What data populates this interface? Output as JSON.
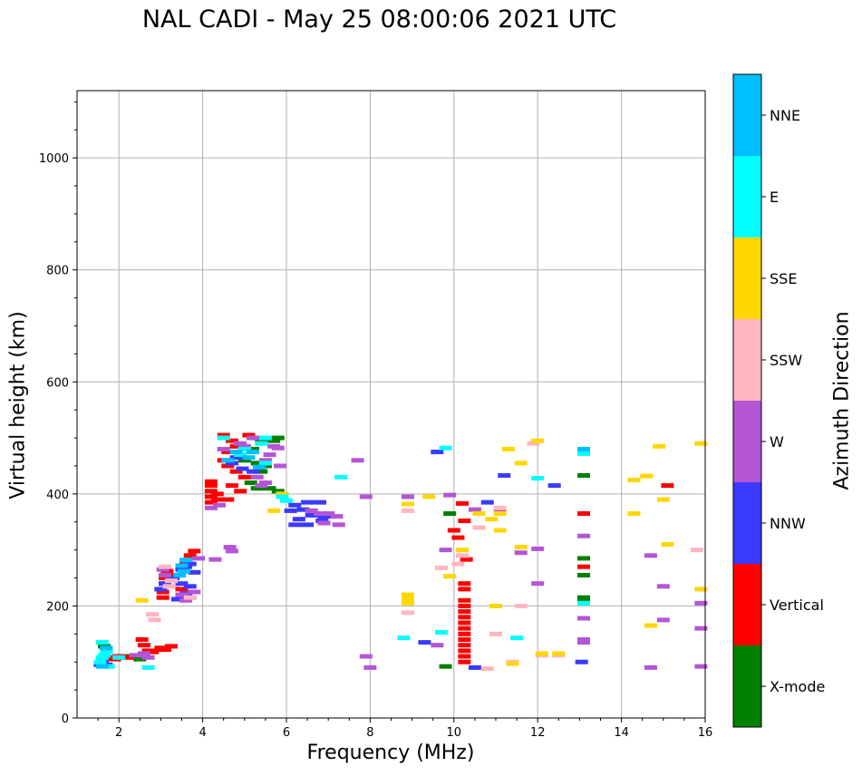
{
  "chart_data": {
    "type": "scatter",
    "title": "NAL CADI - May 25 08:00:06 2021 UTC",
    "xlabel": "Frequency (MHz)",
    "ylabel": "Virtual height (km)",
    "xlim": [
      1.0,
      16.0
    ],
    "ylim": [
      0,
      1120
    ],
    "xticks": [
      2,
      4,
      6,
      8,
      10,
      12,
      14,
      16
    ],
    "yticks": [
      0,
      200,
      400,
      600,
      800,
      1000
    ],
    "xtick_labels": [
      "2",
      "4",
      "6",
      "8",
      "10",
      "12",
      "14",
      "16"
    ],
    "ytick_labels": [
      "0",
      "200",
      "400",
      "600",
      "800",
      "1000"
    ],
    "grid": true,
    "colorbar": {
      "label": "Azimuth Direction",
      "categories": [
        "X-mode",
        "Vertical",
        "NNW",
        "W",
        "SSW",
        "SSE",
        "E",
        "NNE"
      ],
      "colors": [
        "#008000",
        "#ff0000",
        "#3a3aff",
        "#b455d6",
        "#ffb6c1",
        "#ffd700",
        "#00ffff",
        "#00bfff"
      ]
    },
    "series": [
      {
        "name": "X-mode",
        "points": [
          [
            1.65,
            128
          ],
          [
            1.7,
            122
          ],
          [
            2.1,
            110
          ],
          [
            2.5,
            105
          ],
          [
            4.9,
            470
          ],
          [
            5.0,
            460
          ],
          [
            5.2,
            480
          ],
          [
            5.3,
            500
          ],
          [
            5.4,
            495
          ],
          [
            5.5,
            500
          ],
          [
            5.6,
            498
          ],
          [
            5.7,
            495
          ],
          [
            5.8,
            500
          ],
          [
            5.3,
            455
          ],
          [
            5.5,
            450
          ],
          [
            5.4,
            440
          ],
          [
            5.6,
            410
          ],
          [
            5.8,
            405
          ],
          [
            9.9,
            365
          ],
          [
            13.1,
            433
          ],
          [
            13.1,
            285
          ],
          [
            13.1,
            255
          ],
          [
            13.1,
            215
          ],
          [
            13.1,
            210
          ],
          [
            9.8,
            92
          ],
          [
            5.15,
            420
          ],
          [
            5.3,
            410
          ]
        ]
      },
      {
        "name": "Vertical",
        "points": [
          [
            1.8,
            108
          ],
          [
            1.9,
            105
          ],
          [
            2.0,
            110
          ],
          [
            2.2,
            108
          ],
          [
            2.7,
            120
          ],
          [
            2.8,
            118
          ],
          [
            3.0,
            125
          ],
          [
            3.1,
            122
          ],
          [
            3.25,
            128
          ],
          [
            3.05,
            215
          ],
          [
            3.05,
            225
          ],
          [
            3.1,
            240
          ],
          [
            3.1,
            250
          ],
          [
            3.15,
            262
          ],
          [
            3.3,
            255
          ],
          [
            3.5,
            230
          ],
          [
            3.7,
            290
          ],
          [
            3.8,
            298
          ],
          [
            3.6,
            280
          ],
          [
            4.2,
            385
          ],
          [
            4.2,
            395
          ],
          [
            4.2,
            405
          ],
          [
            4.2,
            415
          ],
          [
            4.2,
            422
          ],
          [
            4.35,
            400
          ],
          [
            4.35,
            390
          ],
          [
            4.6,
            390
          ],
          [
            4.5,
            505
          ],
          [
            4.7,
            495
          ],
          [
            4.8,
            485
          ],
          [
            4.6,
            475
          ],
          [
            4.9,
            470
          ],
          [
            4.5,
            460
          ],
          [
            4.6,
            450
          ],
          [
            4.8,
            440
          ],
          [
            5.0,
            430
          ],
          [
            4.7,
            415
          ],
          [
            4.9,
            405
          ],
          [
            5.1,
            505
          ],
          [
            5.3,
            500
          ],
          [
            10.0,
            335
          ],
          [
            10.1,
            322
          ],
          [
            10.2,
            383
          ],
          [
            10.25,
            352
          ],
          [
            10.3,
            283
          ],
          [
            10.25,
            240
          ],
          [
            10.25,
            230
          ],
          [
            10.25,
            210
          ],
          [
            10.25,
            200
          ],
          [
            10.25,
            190
          ],
          [
            10.25,
            180
          ],
          [
            10.25,
            170
          ],
          [
            10.25,
            160
          ],
          [
            10.25,
            150
          ],
          [
            10.25,
            140
          ],
          [
            10.25,
            130
          ],
          [
            10.25,
            120
          ],
          [
            10.25,
            110
          ],
          [
            10.25,
            100
          ],
          [
            13.1,
            365
          ],
          [
            13.1,
            270
          ],
          [
            15.1,
            415
          ],
          [
            2.55,
            140
          ],
          [
            2.6,
            130
          ]
        ]
      },
      {
        "name": "NNW",
        "points": [
          [
            1.55,
            95
          ],
          [
            1.6,
            100
          ],
          [
            1.7,
            95
          ],
          [
            3.0,
            230
          ],
          [
            3.1,
            240
          ],
          [
            3.3,
            250
          ],
          [
            3.5,
            265
          ],
          [
            3.6,
            270
          ],
          [
            3.7,
            275
          ],
          [
            3.8,
            260
          ],
          [
            3.5,
            240
          ],
          [
            3.7,
            235
          ],
          [
            3.6,
            222
          ],
          [
            3.4,
            212
          ],
          [
            4.7,
            455
          ],
          [
            4.8,
            465
          ],
          [
            4.95,
            445
          ],
          [
            5.2,
            440
          ],
          [
            6.1,
            370
          ],
          [
            6.2,
            380
          ],
          [
            6.5,
            385
          ],
          [
            6.8,
            385
          ],
          [
            6.4,
            372
          ],
          [
            6.6,
            362
          ],
          [
            6.9,
            360
          ],
          [
            6.3,
            355
          ],
          [
            6.2,
            345
          ],
          [
            6.5,
            345
          ],
          [
            6.85,
            352
          ],
          [
            9.6,
            475
          ],
          [
            10.5,
            90
          ],
          [
            10.8,
            385
          ],
          [
            11.2,
            433
          ],
          [
            12.4,
            415
          ],
          [
            13.05,
            100
          ],
          [
            9.3,
            135
          ]
        ]
      },
      {
        "name": "W",
        "points": [
          [
            2.4,
            112
          ],
          [
            2.6,
            115
          ],
          [
            2.7,
            108
          ],
          [
            3.05,
            265
          ],
          [
            3.1,
            255
          ],
          [
            3.25,
            245
          ],
          [
            3.5,
            220
          ],
          [
            3.7,
            215
          ],
          [
            3.8,
            225
          ],
          [
            3.6,
            210
          ],
          [
            3.9,
            285
          ],
          [
            4.3,
            283
          ],
          [
            4.2,
            375
          ],
          [
            4.4,
            380
          ],
          [
            4.65,
            305
          ],
          [
            4.7,
            298
          ],
          [
            4.5,
            480
          ],
          [
            4.9,
            490
          ],
          [
            5.2,
            500
          ],
          [
            5.7,
            485
          ],
          [
            5.8,
            482
          ],
          [
            5.6,
            470
          ],
          [
            5.5,
            460
          ],
          [
            5.85,
            450
          ],
          [
            5.0,
            485
          ],
          [
            5.4,
            415
          ],
          [
            5.5,
            420
          ],
          [
            5.3,
            430
          ],
          [
            6.6,
            370
          ],
          [
            6.8,
            365
          ],
          [
            7.0,
            365
          ],
          [
            7.2,
            360
          ],
          [
            7.25,
            345
          ],
          [
            6.9,
            348
          ],
          [
            7.7,
            460
          ],
          [
            7.9,
            395
          ],
          [
            7.9,
            110
          ],
          [
            8.0,
            90
          ],
          [
            8.9,
            395
          ],
          [
            9.9,
            398
          ],
          [
            10.5,
            372
          ],
          [
            11.1,
            368
          ],
          [
            11.6,
            295
          ],
          [
            12.0,
            302
          ],
          [
            12.0,
            240
          ],
          [
            13.1,
            325
          ],
          [
            13.1,
            178
          ],
          [
            13.1,
            140
          ],
          [
            13.1,
            135
          ],
          [
            14.7,
            290
          ],
          [
            14.7,
            90
          ],
          [
            15.0,
            235
          ],
          [
            15.0,
            175
          ],
          [
            15.9,
            205
          ],
          [
            15.9,
            160
          ],
          [
            15.9,
            92
          ],
          [
            9.6,
            130
          ],
          [
            9.8,
            300
          ]
        ]
      },
      {
        "name": "SSW",
        "points": [
          [
            2.8,
            185
          ],
          [
            2.85,
            175
          ],
          [
            3.1,
            270
          ],
          [
            3.25,
            245
          ],
          [
            3.2,
            235
          ],
          [
            3.7,
            215
          ],
          [
            8.9,
            370
          ],
          [
            8.9,
            188
          ],
          [
            10.1,
            275
          ],
          [
            10.2,
            290
          ],
          [
            10.6,
            340
          ],
          [
            10.8,
            88
          ],
          [
            11.0,
            150
          ],
          [
            11.1,
            375
          ],
          [
            11.4,
            100
          ],
          [
            11.6,
            200
          ],
          [
            11.9,
            490
          ],
          [
            12.1,
            112
          ],
          [
            12.5,
            112
          ],
          [
            15.8,
            300
          ],
          [
            9.7,
            268
          ]
        ]
      },
      {
        "name": "SSE",
        "points": [
          [
            2.55,
            210
          ],
          [
            5.7,
            370
          ],
          [
            5.9,
            400
          ],
          [
            8.9,
            382
          ],
          [
            8.9,
            220
          ],
          [
            8.9,
            212
          ],
          [
            8.9,
            205
          ],
          [
            9.4,
            395
          ],
          [
            9.9,
            253
          ],
          [
            10.2,
            300
          ],
          [
            10.6,
            365
          ],
          [
            10.9,
            355
          ],
          [
            11.0,
            200
          ],
          [
            11.1,
            365
          ],
          [
            11.1,
            335
          ],
          [
            11.3,
            480
          ],
          [
            11.4,
            97
          ],
          [
            11.6,
            305
          ],
          [
            11.6,
            455
          ],
          [
            12.0,
            495
          ],
          [
            12.1,
            115
          ],
          [
            12.5,
            115
          ],
          [
            14.3,
            425
          ],
          [
            14.3,
            365
          ],
          [
            14.6,
            432
          ],
          [
            14.7,
            165
          ],
          [
            14.9,
            485
          ],
          [
            15.0,
            390
          ],
          [
            15.1,
            310
          ],
          [
            15.9,
            490
          ],
          [
            15.9,
            230
          ]
        ]
      },
      {
        "name": "E",
        "points": [
          [
            1.55,
            100
          ],
          [
            1.6,
            108
          ],
          [
            1.65,
            112
          ],
          [
            1.7,
            118
          ],
          [
            1.75,
            92
          ],
          [
            1.6,
            135
          ],
          [
            2.0,
            108
          ],
          [
            4.5,
            500
          ],
          [
            5.4,
            490
          ],
          [
            5.5,
            500
          ],
          [
            5.0,
            480
          ],
          [
            4.9,
            470
          ],
          [
            5.5,
            455
          ],
          [
            5.9,
            395
          ],
          [
            6.0,
            388
          ],
          [
            7.3,
            430
          ],
          [
            8.8,
            143
          ],
          [
            9.8,
            482
          ],
          [
            9.7,
            153
          ],
          [
            11.5,
            143
          ],
          [
            12.0,
            428
          ],
          [
            13.1,
            472
          ],
          [
            13.1,
            205
          ],
          [
            2.7,
            90
          ]
        ]
      },
      {
        "name": "NNE",
        "points": [
          [
            1.6,
            92
          ],
          [
            1.7,
            125
          ],
          [
            3.6,
            282
          ],
          [
            3.5,
            272
          ],
          [
            3.55,
            262
          ],
          [
            3.45,
            255
          ],
          [
            4.6,
            460
          ],
          [
            4.8,
            475
          ],
          [
            5.1,
            465
          ],
          [
            5.2,
            475
          ],
          [
            13.1,
            480
          ],
          [
            5.35,
            448
          ]
        ]
      }
    ]
  }
}
